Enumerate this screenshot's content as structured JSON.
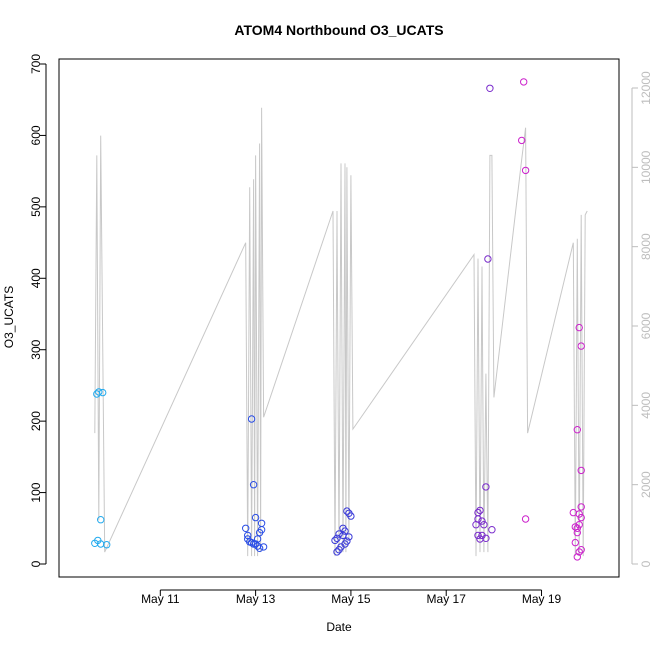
{
  "chart_data": {
    "type": "scatter",
    "title": "ATOM4 Northbound O3_UCATS",
    "xlabel": "Date",
    "ylabel": "O3_UCATS",
    "xlim": [
      "2018-05-09T00:00",
      "2018-05-20T12:00"
    ],
    "ylim": [
      0,
      700
    ],
    "y2lim": [
      0,
      12000
    ],
    "x_ticks": [
      {
        "date": "2018-05-11",
        "label": "May 11"
      },
      {
        "date": "2018-05-13",
        "label": "May 13"
      },
      {
        "date": "2018-05-15",
        "label": "May 15"
      },
      {
        "date": "2018-05-17",
        "label": "May 17"
      },
      {
        "date": "2018-05-19",
        "label": "May 19"
      }
    ],
    "y_ticks": [
      0,
      100,
      200,
      300,
      400,
      500,
      600,
      700
    ],
    "y2_ticks": [
      0,
      2000,
      4000,
      6000,
      8000,
      10000,
      12000
    ],
    "grid": false,
    "legend": "none",
    "point_color_scale": [
      "#22aaee",
      "#2a4ee6",
      "#3a3ad8",
      "#7a2ccc",
      "#cc22cc"
    ],
    "line_color": "#c8c8c8",
    "points": [
      [
        "2018-05-09T16:00",
        238
      ],
      [
        "2018-05-09T17:00",
        241
      ],
      [
        "2018-05-09T19:00",
        240
      ],
      [
        "2018-05-09T18:00",
        62
      ],
      [
        "2018-05-09T15:00",
        29
      ],
      [
        "2018-05-09T16:30",
        33
      ],
      [
        "2018-05-09T18:00",
        28
      ],
      [
        "2018-05-09T21:00",
        27
      ],
      [
        "2018-05-12T19:00",
        50
      ],
      [
        "2018-05-12T20:00",
        40
      ],
      [
        "2018-05-12T20:00",
        35
      ],
      [
        "2018-05-12T21:00",
        31
      ],
      [
        "2018-05-12T22:00",
        203
      ],
      [
        "2018-05-12T23:00",
        111
      ],
      [
        "2018-05-12T22:00",
        30
      ],
      [
        "2018-05-13T00:00",
        28
      ],
      [
        "2018-05-13T00:00",
        65
      ],
      [
        "2018-05-13T01:00",
        35
      ],
      [
        "2018-05-13T02:00",
        44
      ],
      [
        "2018-05-13T03:00",
        57
      ],
      [
        "2018-05-13T03:00",
        48
      ],
      [
        "2018-05-13T04:00",
        24
      ],
      [
        "2018-05-13T01:00",
        25
      ],
      [
        "2018-05-12T23:00",
        28
      ],
      [
        "2018-05-13T02:00",
        22
      ],
      [
        "2018-05-14T17:00",
        17
      ],
      [
        "2018-05-14T18:00",
        20
      ],
      [
        "2018-05-14T19:00",
        24
      ],
      [
        "2018-05-14T17:00",
        36
      ],
      [
        "2018-05-14T18:00",
        42
      ],
      [
        "2018-05-14T20:00",
        50
      ],
      [
        "2018-05-14T21:00",
        46
      ],
      [
        "2018-05-14T22:00",
        74
      ],
      [
        "2018-05-14T23:00",
        71
      ],
      [
        "2018-05-15T00:00",
        67
      ],
      [
        "2018-05-14T23:00",
        38
      ],
      [
        "2018-05-14T22:00",
        32
      ],
      [
        "2018-05-14T20:00",
        40
      ],
      [
        "2018-05-14T16:00",
        33
      ],
      [
        "2018-05-14T21:00",
        28
      ],
      [
        "2018-05-17T15:00",
        55
      ],
      [
        "2018-05-17T16:00",
        63
      ],
      [
        "2018-05-17T16:00",
        72
      ],
      [
        "2018-05-17T17:00",
        75
      ],
      [
        "2018-05-17T18:00",
        60
      ],
      [
        "2018-05-17T19:00",
        55
      ],
      [
        "2018-05-17T16:00",
        40
      ],
      [
        "2018-05-17T17:00",
        35
      ],
      [
        "2018-05-17T18:00",
        40
      ],
      [
        "2018-05-17T20:00",
        36
      ],
      [
        "2018-05-17T20:00",
        108
      ],
      [
        "2018-05-17T21:00",
        427
      ],
      [
        "2018-05-17T23:00",
        48
      ],
      [
        "2018-05-17T22:00",
        666
      ],
      [
        "2018-05-18T14:00",
        593
      ],
      [
        "2018-05-18T15:00",
        675
      ],
      [
        "2018-05-18T16:00",
        551
      ],
      [
        "2018-05-18T16:00",
        63
      ],
      [
        "2018-05-19T16:00",
        72
      ],
      [
        "2018-05-19T17:00",
        30
      ],
      [
        "2018-05-19T18:00",
        50
      ],
      [
        "2018-05-19T18:00",
        188
      ],
      [
        "2018-05-19T19:00",
        331
      ],
      [
        "2018-05-19T20:00",
        305
      ],
      [
        "2018-05-19T20:00",
        131
      ],
      [
        "2018-05-19T20:00",
        80
      ],
      [
        "2018-05-19T20:00",
        65
      ],
      [
        "2018-05-19T19:00",
        70
      ],
      [
        "2018-05-19T20:00",
        20
      ],
      [
        "2018-05-19T19:00",
        17
      ],
      [
        "2018-05-19T18:00",
        44
      ],
      [
        "2018-05-19T17:00",
        52
      ],
      [
        "2018-05-19T18:00",
        10
      ],
      [
        "2018-05-19T19:00",
        55
      ]
    ],
    "line_series_y2": [
      [
        "2018-05-09T15:00",
        3300
      ],
      [
        "2018-05-09T16:00",
        10300
      ],
      [
        "2018-05-09T17:00",
        1100
      ],
      [
        "2018-05-09T18:00",
        10800
      ],
      [
        "2018-05-09T20:00",
        300
      ],
      [
        "2018-05-12T19:00",
        8100
      ],
      [
        "2018-05-12T20:00",
        200
      ],
      [
        "2018-05-12T21:00",
        9500
      ],
      [
        "2018-05-12T22:00",
        200
      ],
      [
        "2018-05-12T23:00",
        9700
      ],
      [
        "2018-05-12T23:30",
        200
      ],
      [
        "2018-05-13T00:00",
        10300
      ],
      [
        "2018-05-13T01:00",
        200
      ],
      [
        "2018-05-13T02:00",
        10600
      ],
      [
        "2018-05-13T02:30",
        300
      ],
      [
        "2018-05-13T03:00",
        11500
      ],
      [
        "2018-05-13T04:00",
        3700
      ],
      [
        "2018-05-14T15:00",
        8900
      ],
      [
        "2018-05-14T16:00",
        200
      ],
      [
        "2018-05-14T17:00",
        8900
      ],
      [
        "2018-05-14T18:00",
        300
      ],
      [
        "2018-05-14T19:00",
        10100
      ],
      [
        "2018-05-14T20:00",
        300
      ],
      [
        "2018-05-14T21:00",
        10100
      ],
      [
        "2018-05-14T21:30",
        300
      ],
      [
        "2018-05-14T22:00",
        10000
      ],
      [
        "2018-05-14T23:00",
        600
      ],
      [
        "2018-05-15T00:00",
        9800
      ],
      [
        "2018-05-15T01:00",
        3400
      ],
      [
        "2018-05-17T14:00",
        7800
      ],
      [
        "2018-05-17T15:00",
        200
      ],
      [
        "2018-05-17T16:00",
        7700
      ],
      [
        "2018-05-17T17:00",
        300
      ],
      [
        "2018-05-17T18:00",
        7500
      ],
      [
        "2018-05-17T19:00",
        300
      ],
      [
        "2018-05-17T20:00",
        4800
      ],
      [
        "2018-05-17T21:00",
        300
      ],
      [
        "2018-05-17T22:00",
        10300
      ],
      [
        "2018-05-17T23:00",
        10300
      ],
      [
        "2018-05-18T00:00",
        4200
      ],
      [
        "2018-05-18T14:00",
        10200
      ],
      [
        "2018-05-18T16:00",
        11000
      ],
      [
        "2018-05-18T17:00",
        3300
      ],
      [
        "2018-05-19T16:00",
        8100
      ],
      [
        "2018-05-19T17:00",
        200
      ],
      [
        "2018-05-19T18:00",
        8200
      ],
      [
        "2018-05-19T19:00",
        200
      ],
      [
        "2018-05-19T20:00",
        8800
      ],
      [
        "2018-05-19T21:00",
        200
      ],
      [
        "2018-05-19T22:00",
        8800
      ],
      [
        "2018-05-19T23:00",
        8900
      ]
    ]
  }
}
